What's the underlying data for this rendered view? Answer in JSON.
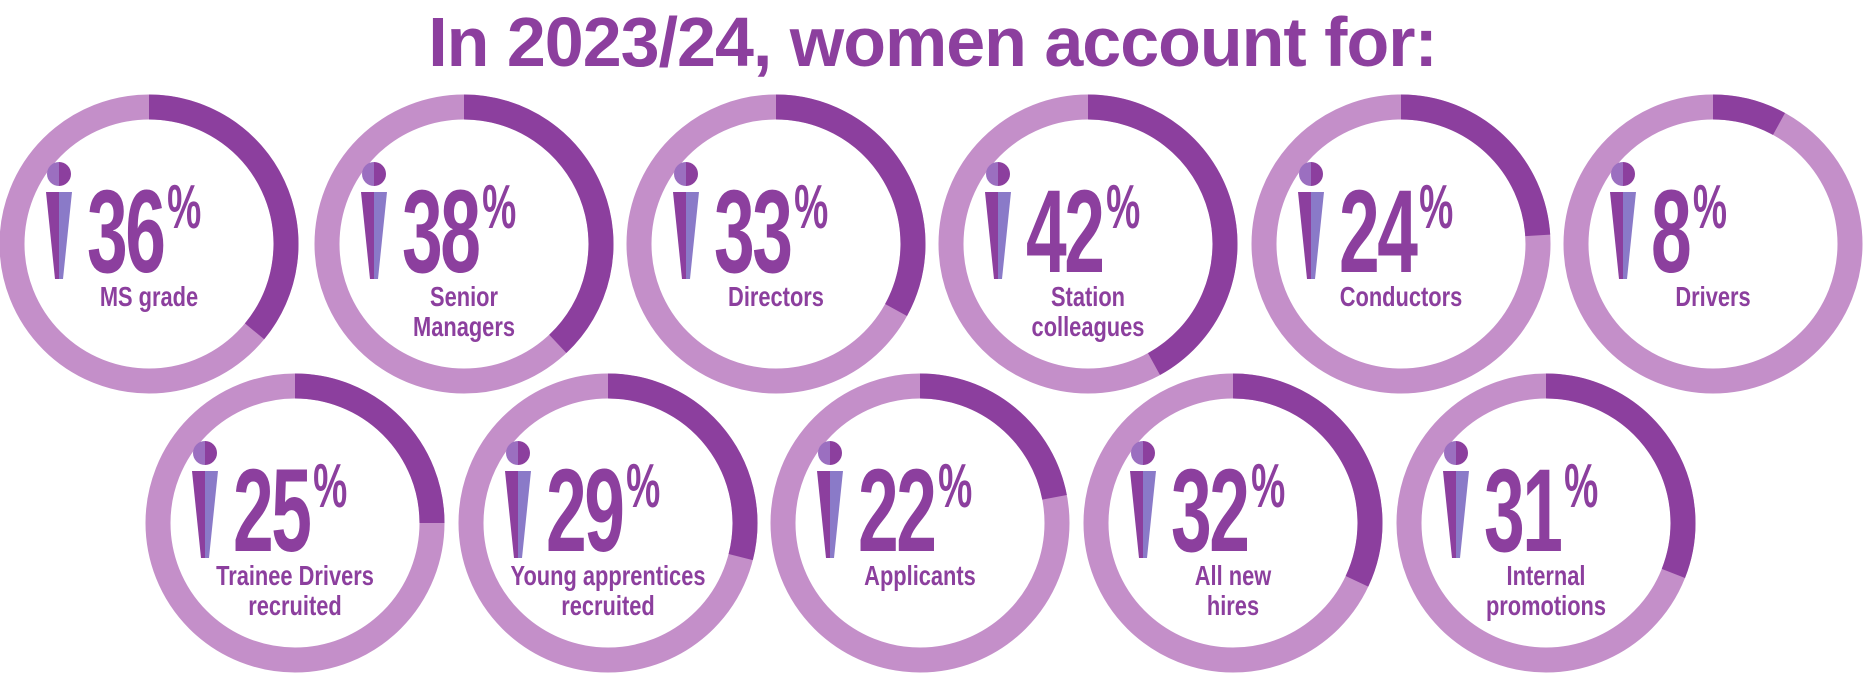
{
  "chart_data": {
    "type": "donut",
    "title": "In 2023/24, women account for:",
    "categories": [
      "MS grade",
      "Senior\nManagers",
      "Directors",
      "Station\ncolleagues",
      "Conductors",
      "Drivers",
      "Trainee Drivers\nrecruited",
      "Young apprentices\nrecruited",
      "Applicants",
      "All new\nhires",
      "Internal\npromotions"
    ],
    "values": [
      36,
      38,
      33,
      42,
      24,
      8,
      25,
      29,
      22,
      32,
      31
    ],
    "unit": "%",
    "color": "#8c3f9e",
    "track_color": "#c48fc9"
  }
}
